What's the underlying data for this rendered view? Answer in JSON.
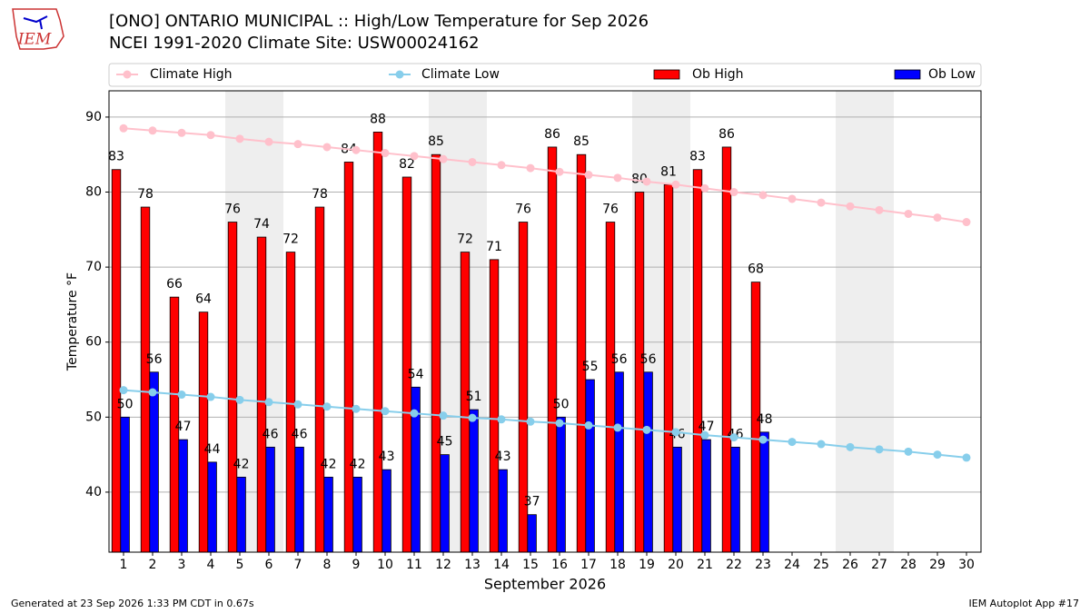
{
  "chart_data": {
    "type": "bar",
    "title": "[ONO] ONTARIO MUNICIPAL :: High/Low Temperature for Sep 2026",
    "subtitle": "NCEI 1991-2020 Climate Site: USW00024162",
    "logo_text": "IEM",
    "ylabel": "Temperature °F",
    "xlabel": "September 2026",
    "footer_left": "Generated at 23 Sep 2026 1:33 PM CDT in 0.67s",
    "footer_right": "IEM Autoplot App #17",
    "x": [
      1,
      2,
      3,
      4,
      5,
      6,
      7,
      8,
      9,
      10,
      11,
      12,
      13,
      14,
      15,
      16,
      17,
      18,
      19,
      20,
      21,
      22,
      23,
      24,
      25,
      26,
      27,
      28,
      29,
      30
    ],
    "xlim": [
      0.5,
      30.5
    ],
    "xticks": [
      1,
      2,
      3,
      4,
      5,
      6,
      7,
      8,
      9,
      10,
      11,
      12,
      13,
      14,
      15,
      16,
      17,
      18,
      19,
      20,
      21,
      22,
      23,
      24,
      25,
      26,
      27,
      28,
      29,
      30
    ],
    "ylim": [
      32,
      93.5
    ],
    "yticks": [
      40,
      50,
      60,
      70,
      80,
      90
    ],
    "grid": true,
    "shaded_days": [
      5,
      6,
      12,
      13,
      19,
      20,
      26,
      27
    ],
    "series": [
      {
        "name": "Climate High",
        "type": "line",
        "color": "#ffc0cb",
        "values": [
          88.5,
          88.2,
          87.9,
          87.6,
          87.1,
          86.7,
          86.4,
          86.0,
          85.6,
          85.2,
          84.8,
          84.4,
          84.0,
          83.6,
          83.2,
          82.7,
          82.3,
          81.9,
          81.4,
          81.0,
          80.5,
          80.0,
          79.6,
          79.1,
          78.6,
          78.1,
          77.6,
          77.1,
          76.6,
          76.0
        ]
      },
      {
        "name": "Climate Low",
        "type": "line",
        "color": "#87ceeb",
        "values": [
          53.6,
          53.3,
          53.0,
          52.7,
          52.3,
          52.0,
          51.7,
          51.4,
          51.1,
          50.8,
          50.5,
          50.2,
          49.9,
          49.7,
          49.4,
          49.2,
          48.9,
          48.6,
          48.3,
          48.0,
          47.6,
          47.3,
          47.0,
          46.7,
          46.4,
          46.0,
          45.7,
          45.4,
          45.0,
          44.6
        ]
      },
      {
        "name": "Ob High",
        "type": "bar",
        "color": "#ff0000",
        "values": [
          83,
          78,
          66,
          64,
          76,
          74,
          72,
          78,
          84,
          88,
          82,
          85,
          72,
          71,
          76,
          86,
          85,
          76,
          80,
          81,
          83,
          86,
          68,
          null,
          null,
          null,
          null,
          null,
          null,
          null
        ]
      },
      {
        "name": "Ob Low",
        "type": "bar",
        "color": "#0000ff",
        "values": [
          50,
          56,
          47,
          44,
          42,
          46,
          46,
          42,
          42,
          43,
          54,
          45,
          51,
          43,
          37,
          50,
          55,
          56,
          56,
          46,
          47,
          46,
          48,
          null,
          null,
          null,
          null,
          null,
          null,
          null
        ]
      }
    ]
  }
}
